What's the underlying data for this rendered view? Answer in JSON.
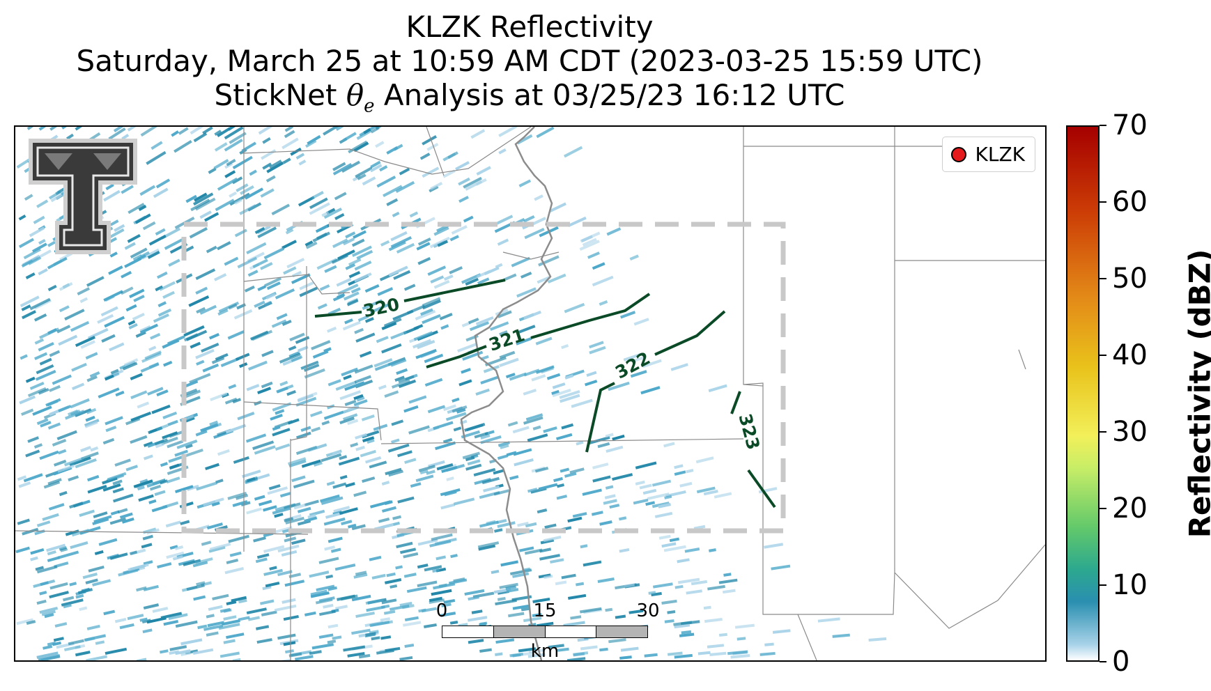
{
  "title": {
    "line1": "KLZK Reflectivity",
    "line2": "Saturday, March 25 at 10:59 AM CDT (2023-03-25 15:59 UTC)",
    "line3_prefix": "StickNet ",
    "line3_symbol": "θ",
    "line3_subscript": "e",
    "line3_suffix": " Analysis at 03/25/23 16:12 UTC"
  },
  "legend": {
    "station": "KLZK",
    "marker_color": "#e41a1c"
  },
  "logo": {
    "icon": "texas-tech-double-t-logo",
    "text": "T"
  },
  "contours": {
    "color": "#0b4a26",
    "labels": [
      "320",
      "321",
      "322",
      "323"
    ]
  },
  "scale_bar": {
    "ticks": [
      "0",
      "15",
      "30"
    ],
    "unit": "km"
  },
  "colorbar": {
    "title": "Reflectivity (dBZ)",
    "ticks": [
      "0",
      "10",
      "20",
      "30",
      "40",
      "50",
      "60",
      "70"
    ],
    "range": [
      0,
      70
    ]
  },
  "colors": {
    "boundary": "#8a8a8a",
    "river": "#8c8c8c",
    "dashed_box": "#c8c8c8",
    "echo_light": "#a7d2e8",
    "echo_mid": "#4ba7c9",
    "echo_dark": "#1f86a8"
  }
}
